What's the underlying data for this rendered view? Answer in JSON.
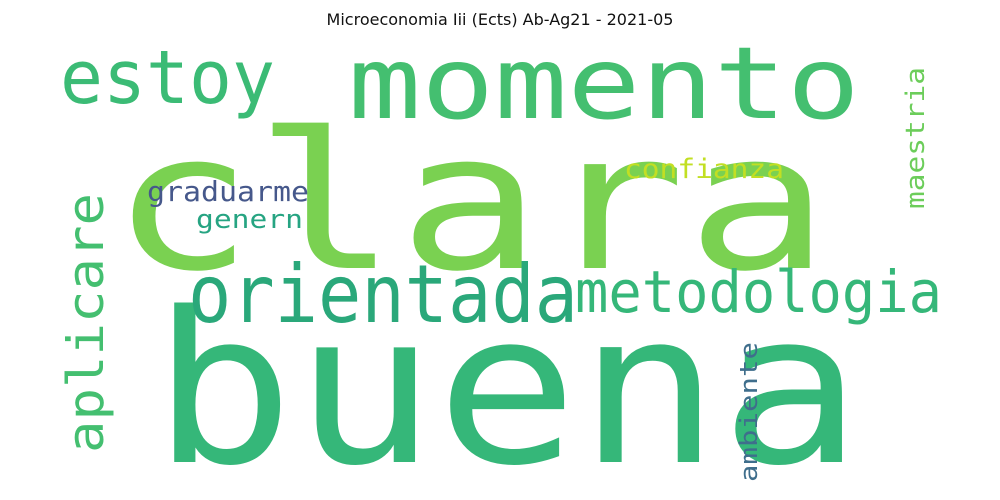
{
  "title": "Microeconomia Iii  (Ects) Ab-Ag21 - 2021-05",
  "words": [
    {
      "text": "buena",
      "color": "#35b779"
    },
    {
      "text": "clara",
      "color": "#7ad151"
    },
    {
      "text": "momento",
      "color": "#44bf70"
    },
    {
      "text": "orientada",
      "color": "#2aa87a"
    },
    {
      "text": "metodologia",
      "color": "#35b779"
    },
    {
      "text": "estoy",
      "color": "#3bbb75"
    },
    {
      "text": "aplicare",
      "color": "#44bf70"
    },
    {
      "text": "confianza",
      "color": "#c2df23"
    },
    {
      "text": "graduarme",
      "color": "#46588b"
    },
    {
      "text": "genern",
      "color": "#26a482"
    },
    {
      "text": "maestria",
      "color": "#6ccd5a"
    },
    {
      "text": "ambiente",
      "color": "#3f6e8c"
    }
  ]
}
